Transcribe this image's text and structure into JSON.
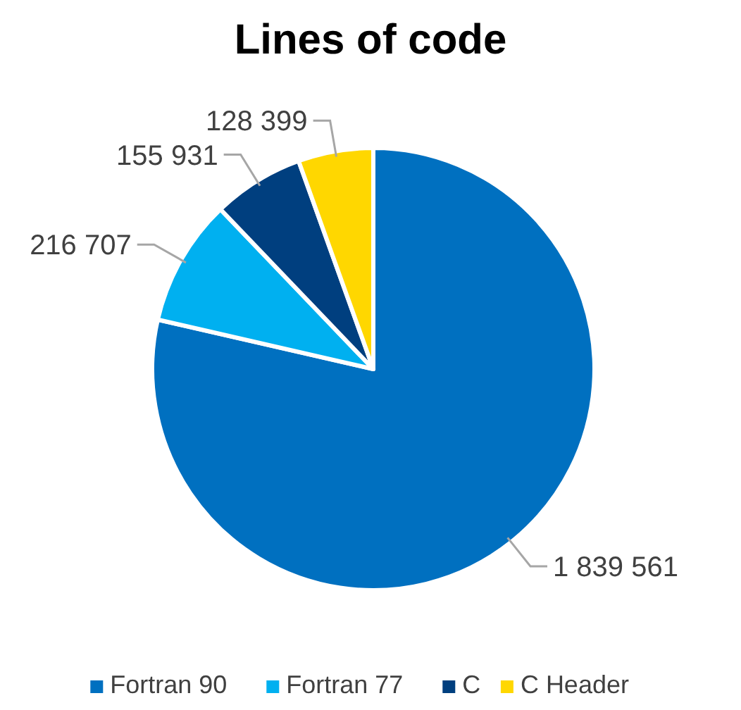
{
  "chart_data": {
    "type": "pie",
    "title": "Lines of code",
    "categories": [
      "Fortran 90",
      "Fortran 77",
      "C",
      "C Header"
    ],
    "values": [
      1839561,
      216707,
      155931,
      128399
    ],
    "value_labels": [
      "1 839 561",
      "216 707",
      "155 931",
      "128 399"
    ],
    "colors": [
      "#0070c0",
      "#00b0f0",
      "#003f7f",
      "#ffd700"
    ],
    "legend": "bottom"
  }
}
